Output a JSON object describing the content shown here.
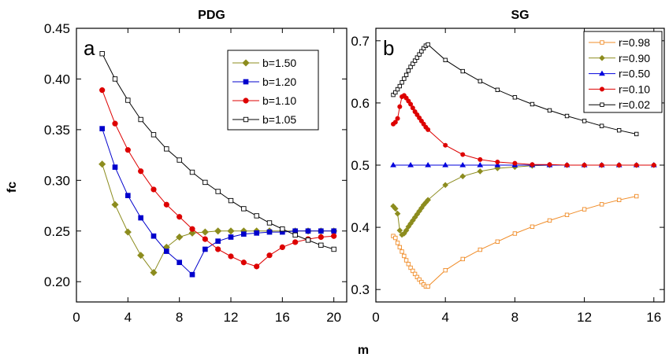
{
  "figure": {
    "shared_xlabel": "m"
  },
  "chart_data": [
    {
      "type": "line",
      "panel_label": "a",
      "title": "PDG",
      "xlabel": "m",
      "ylabel": "fc",
      "xlim": [
        0,
        21
      ],
      "ylim": [
        0.18,
        0.45
      ],
      "xticks": [
        "0",
        "4",
        "8",
        "12",
        "16",
        "20"
      ],
      "yticks": [
        "0.20",
        "0.25",
        "0.30",
        "0.35",
        "0.40",
        "0.45"
      ],
      "legend_position": "top-right",
      "series": [
        {
          "name": "b=1.50",
          "color": "#8c8c1e",
          "marker": "diamond",
          "filled": true,
          "x": [
            2,
            3,
            4,
            5,
            6,
            7,
            8,
            9,
            10,
            11,
            12,
            13,
            14,
            15,
            16,
            17,
            18,
            19,
            20
          ],
          "y": [
            0.316,
            0.276,
            0.249,
            0.226,
            0.209,
            0.234,
            0.244,
            0.248,
            0.249,
            0.25,
            0.25,
            0.25,
            0.25,
            0.25,
            0.25,
            0.25,
            0.25,
            0.25,
            0.25
          ]
        },
        {
          "name": "b=1.20",
          "color": "#0000cc",
          "marker": "square",
          "filled": true,
          "x": [
            2,
            3,
            4,
            5,
            6,
            7,
            8,
            9,
            10,
            11,
            12,
            13,
            14,
            15,
            16,
            17,
            18,
            19,
            20
          ],
          "y": [
            0.351,
            0.313,
            0.285,
            0.263,
            0.245,
            0.23,
            0.219,
            0.207,
            0.232,
            0.24,
            0.244,
            0.247,
            0.248,
            0.249,
            0.249,
            0.25,
            0.25,
            0.25,
            0.25
          ]
        },
        {
          "name": "b=1.10",
          "color": "#dd0000",
          "marker": "circle",
          "filled": true,
          "x": [
            2,
            3,
            4,
            5,
            6,
            7,
            8,
            9,
            10,
            11,
            12,
            13,
            14,
            15,
            16,
            17,
            18,
            19,
            20
          ],
          "y": [
            0.389,
            0.356,
            0.33,
            0.309,
            0.291,
            0.276,
            0.264,
            0.252,
            0.242,
            0.232,
            0.225,
            0.219,
            0.215,
            0.226,
            0.234,
            0.239,
            0.242,
            0.244,
            0.245
          ]
        },
        {
          "name": "b=1.05",
          "color": "#000000",
          "marker": "square",
          "filled": false,
          "x": [
            2,
            3,
            4,
            5,
            6,
            7,
            8,
            9,
            10,
            11,
            12,
            13,
            14,
            15,
            16,
            17,
            18,
            19,
            20
          ],
          "y": [
            0.425,
            0.4,
            0.379,
            0.36,
            0.345,
            0.331,
            0.32,
            0.308,
            0.298,
            0.289,
            0.28,
            0.272,
            0.265,
            0.258,
            0.252,
            0.246,
            0.241,
            0.236,
            0.232
          ]
        }
      ]
    },
    {
      "type": "line",
      "panel_label": "b",
      "title": "SG",
      "xlabel": "m",
      "ylabel": "",
      "xlim": [
        0,
        16.6
      ],
      "ylim": [
        0.28,
        0.72
      ],
      "xticks": [
        "0",
        "4",
        "8",
        "12",
        "16"
      ],
      "yticks": [
        "0.3",
        "0.4",
        "0.5",
        "0.6",
        "0.7"
      ],
      "legend_position": "top-right",
      "series": [
        {
          "name": "r=0.98",
          "color": "#f08c28",
          "marker": "square",
          "filled": false,
          "x": [
            1,
            1.125,
            1.25,
            1.375,
            1.5,
            1.625,
            1.75,
            1.875,
            2,
            2.125,
            2.25,
            2.375,
            2.5,
            2.625,
            2.75,
            2.875,
            3,
            4,
            5,
            6,
            7,
            8,
            9,
            10,
            11,
            12,
            13,
            14,
            15
          ],
          "y": [
            0.386,
            0.383,
            0.375,
            0.368,
            0.361,
            0.354,
            0.347,
            0.341,
            0.335,
            0.33,
            0.325,
            0.32,
            0.316,
            0.312,
            0.308,
            0.305,
            0.305,
            0.331,
            0.349,
            0.364,
            0.377,
            0.39,
            0.401,
            0.411,
            0.42,
            0.429,
            0.437,
            0.444,
            0.45
          ]
        },
        {
          "name": "r=0.90",
          "color": "#8c8c1e",
          "marker": "diamond",
          "filled": true,
          "x": [
            1,
            1.125,
            1.25,
            1.375,
            1.5,
            1.625,
            1.75,
            1.875,
            2,
            2.125,
            2.25,
            2.375,
            2.5,
            2.625,
            2.75,
            2.875,
            3,
            4,
            5,
            6,
            7,
            8,
            9,
            10,
            11,
            12,
            13,
            14,
            15,
            16
          ],
          "y": [
            0.434,
            0.43,
            0.422,
            0.395,
            0.388,
            0.39,
            0.395,
            0.401,
            0.406,
            0.411,
            0.416,
            0.421,
            0.426,
            0.431,
            0.436,
            0.44,
            0.444,
            0.468,
            0.482,
            0.49,
            0.495,
            0.497,
            0.499,
            0.5,
            0.5,
            0.5,
            0.5,
            0.5,
            0.5,
            0.5
          ]
        },
        {
          "name": "r=0.50",
          "color": "#0000dd",
          "marker": "triangle",
          "filled": true,
          "x": [
            1,
            2,
            3,
            4,
            5,
            6,
            7,
            8,
            9,
            10,
            11,
            12,
            13,
            14,
            15,
            16
          ],
          "y": [
            0.5,
            0.5,
            0.5,
            0.5,
            0.5,
            0.5,
            0.5,
            0.5,
            0.5,
            0.5,
            0.5,
            0.5,
            0.5,
            0.5,
            0.5,
            0.5
          ]
        },
        {
          "name": "r=0.10",
          "color": "#dd0000",
          "marker": "circle",
          "filled": true,
          "x": [
            1,
            1.125,
            1.25,
            1.375,
            1.5,
            1.625,
            1.75,
            1.875,
            2,
            2.125,
            2.25,
            2.375,
            2.5,
            2.625,
            2.75,
            2.875,
            3,
            4,
            5,
            6,
            7,
            8,
            9,
            10,
            11,
            12,
            13,
            14,
            15,
            16
          ],
          "y": [
            0.566,
            0.569,
            0.575,
            0.594,
            0.61,
            0.612,
            0.608,
            0.603,
            0.598,
            0.592,
            0.586,
            0.581,
            0.576,
            0.571,
            0.566,
            0.561,
            0.557,
            0.532,
            0.517,
            0.509,
            0.505,
            0.503,
            0.501,
            0.501,
            0.5,
            0.5,
            0.5,
            0.5,
            0.5,
            0.5
          ]
        },
        {
          "name": "r=0.02",
          "color": "#000000",
          "marker": "square",
          "filled": false,
          "x": [
            1,
            1.125,
            1.25,
            1.375,
            1.5,
            1.625,
            1.75,
            1.875,
            2,
            2.125,
            2.25,
            2.375,
            2.5,
            2.625,
            2.75,
            2.875,
            3,
            4,
            5,
            6,
            7,
            8,
            9,
            10,
            11,
            12,
            13,
            14,
            15
          ],
          "y": [
            0.613,
            0.617,
            0.622,
            0.627,
            0.633,
            0.639,
            0.645,
            0.652,
            0.658,
            0.663,
            0.668,
            0.673,
            0.678,
            0.683,
            0.688,
            0.692,
            0.694,
            0.669,
            0.651,
            0.635,
            0.621,
            0.609,
            0.598,
            0.588,
            0.579,
            0.571,
            0.563,
            0.556,
            0.55
          ]
        }
      ]
    }
  ]
}
